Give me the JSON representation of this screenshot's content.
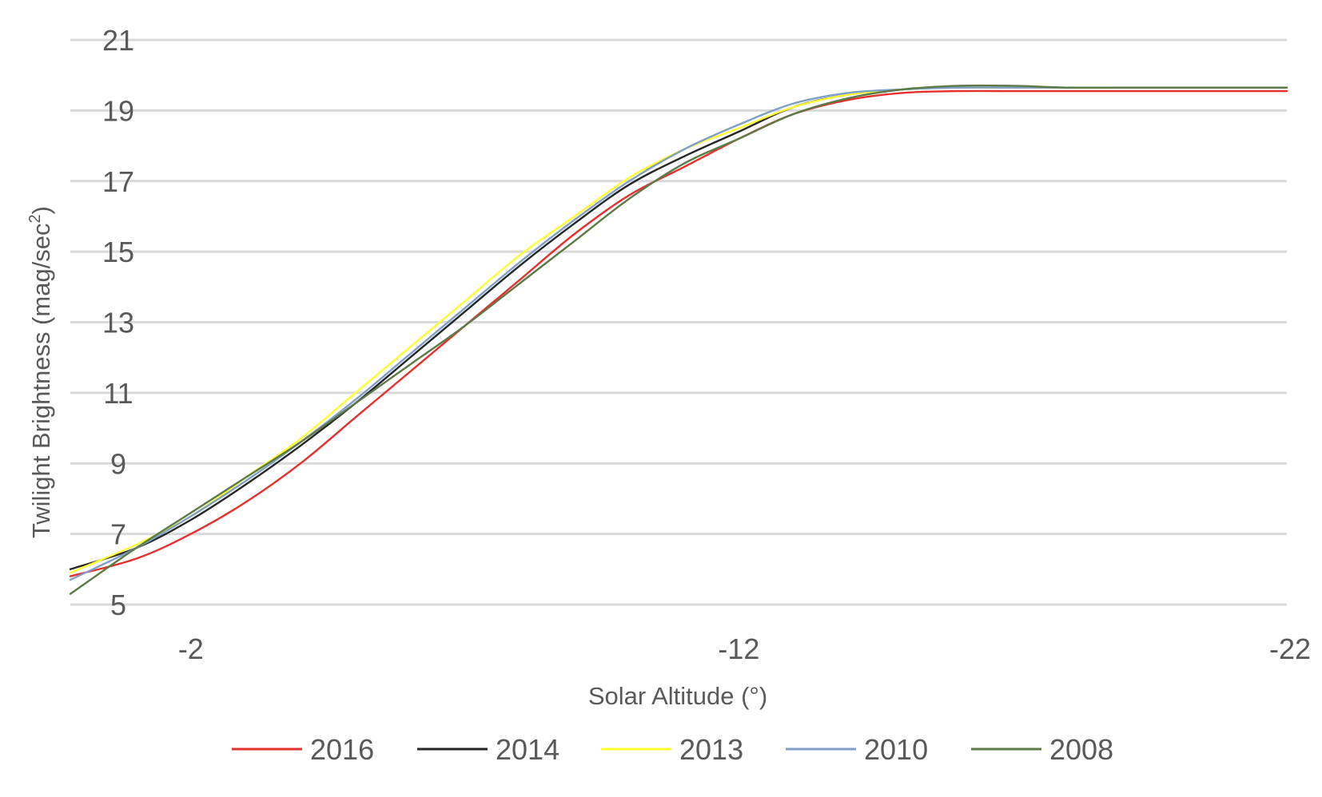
{
  "chart_data": {
    "type": "line",
    "title": "",
    "xlabel": "Solar Altitude (°)",
    "ylabel": "Twilight Brightness (mag/sec²)",
    "ylabel_main": "Twilight Brightness (mag/sec",
    "ylabel_sup": "2",
    "ylabel_end": ")",
    "xlim": [
      0.2,
      -22
    ],
    "ylim": [
      5,
      21
    ],
    "x_ticks": [
      -2,
      -12,
      -22
    ],
    "x_tick_labels": [
      "-2",
      "-12",
      "-22"
    ],
    "y_ticks": [
      5,
      7,
      9,
      11,
      13,
      15,
      17,
      19,
      21
    ],
    "y_tick_labels": [
      "5",
      "7",
      "9",
      "11",
      "13",
      "15",
      "17",
      "19",
      "21"
    ],
    "grid": true,
    "legend_position": "bottom",
    "series": [
      {
        "name": "2016",
        "color": "#e5302e",
        "x": [
          0.2,
          -1,
          -2,
          -3,
          -4,
          -5,
          -6,
          -7,
          -8,
          -9,
          -10,
          -11,
          -12,
          -13,
          -14,
          -15,
          -16,
          -17,
          -18,
          -19,
          -20,
          -21,
          -22
        ],
        "y": [
          5.8,
          6.3,
          7.0,
          7.9,
          9.0,
          10.3,
          11.6,
          12.9,
          14.2,
          15.5,
          16.6,
          17.4,
          18.2,
          18.9,
          19.3,
          19.5,
          19.55,
          19.55,
          19.55,
          19.55,
          19.55,
          19.55,
          19.55
        ]
      },
      {
        "name": "2014",
        "color": "#262626",
        "x": [
          0.2,
          -1,
          -2,
          -3,
          -4,
          -5,
          -6,
          -7,
          -8,
          -9,
          -10,
          -11,
          -12,
          -13,
          -14,
          -15,
          -16,
          -17,
          -18,
          -19,
          -20,
          -21,
          -22
        ],
        "y": [
          6.0,
          6.6,
          7.4,
          8.4,
          9.5,
          10.7,
          12.0,
          13.3,
          14.6,
          15.8,
          16.9,
          17.7,
          18.4,
          19.1,
          19.45,
          19.6,
          19.65,
          19.65,
          19.65,
          19.65,
          19.65,
          19.65,
          19.65
        ]
      },
      {
        "name": "2013",
        "color": "#ffff33",
        "x": [
          0.2,
          -1,
          -2,
          -3,
          -4,
          -5,
          -6,
          -7,
          -8,
          -9,
          -10,
          -11,
          -12,
          -13,
          -14,
          -15,
          -16,
          -17,
          -18,
          -19,
          -20,
          -21,
          -22
        ],
        "y": [
          5.9,
          6.7,
          7.5,
          8.6,
          9.7,
          11.0,
          12.3,
          13.6,
          14.9,
          16.0,
          17.1,
          17.9,
          18.5,
          19.1,
          19.45,
          19.6,
          19.65,
          19.65,
          19.65,
          19.65,
          19.65,
          19.65,
          19.65
        ]
      },
      {
        "name": "2010",
        "color": "#7f9fc7",
        "x": [
          0.2,
          -1,
          -2,
          -3,
          -4,
          -5,
          -6,
          -7,
          -8,
          -9,
          -10,
          -11,
          -12,
          -13,
          -14,
          -15,
          -16,
          -17,
          -18,
          -19,
          -20,
          -21,
          -22
        ],
        "y": [
          5.7,
          6.6,
          7.5,
          8.5,
          9.6,
          10.8,
          12.1,
          13.4,
          14.7,
          15.9,
          17.0,
          17.9,
          18.6,
          19.2,
          19.5,
          19.6,
          19.65,
          19.65,
          19.65,
          19.65,
          19.65,
          19.65,
          19.65
        ]
      },
      {
        "name": "2008",
        "color": "#5c7a45",
        "x": [
          0.2,
          -1,
          -2,
          -3,
          -4,
          -5,
          -6,
          -7,
          -8,
          -9,
          -10,
          -11,
          -12,
          -13,
          -14,
          -15,
          -16,
          -17,
          -18,
          -19,
          -20,
          -21,
          -22
        ],
        "y": [
          5.3,
          6.6,
          7.6,
          8.6,
          9.6,
          10.7,
          11.8,
          12.9,
          14.1,
          15.3,
          16.5,
          17.5,
          18.2,
          18.9,
          19.35,
          19.6,
          19.7,
          19.7,
          19.65,
          19.65,
          19.65,
          19.65,
          19.65
        ]
      }
    ]
  }
}
